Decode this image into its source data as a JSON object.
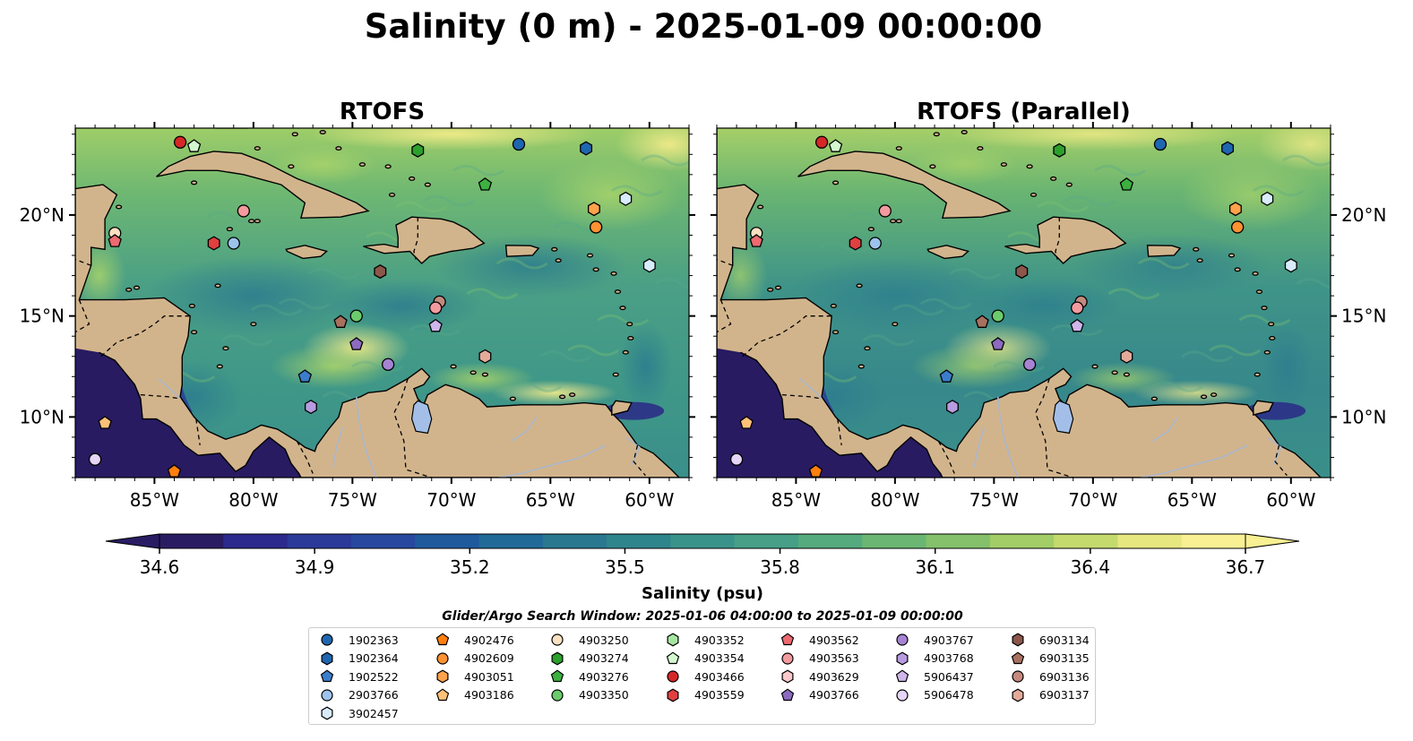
{
  "figure": {
    "title": "Salinity (0 m) - 2025-01-09 00:00:00",
    "panels": [
      {
        "title": "RTOFS",
        "variant": "control"
      },
      {
        "title": "RTOFS (Parallel)",
        "variant": "parallel"
      }
    ],
    "x_ticks": [
      "85°W",
      "80°W",
      "75°W",
      "70°W",
      "65°W",
      "60°W"
    ],
    "y_ticks": [
      "20°N",
      "15°N",
      "10°N"
    ],
    "extent": {
      "lon": [
        -89,
        -58
      ],
      "lat": [
        7,
        24.3
      ]
    }
  },
  "colorbar": {
    "label": "Salinity (psu)",
    "ticks": [
      "34.6",
      "34.9",
      "35.2",
      "35.5",
      "35.8",
      "36.1",
      "36.4",
      "36.7"
    ],
    "range": [
      34.6,
      36.7
    ],
    "colors": [
      "#2a1c63",
      "#2c2a8c",
      "#2b3a99",
      "#27489e",
      "#1f5a9d",
      "#216a98",
      "#2a7890",
      "#2f858c",
      "#3a938a",
      "#469f86",
      "#55aa7e",
      "#6bb673",
      "#84c16a",
      "#a2cd67",
      "#c5da6c",
      "#e6e77f",
      "#f9ef93"
    ],
    "extend": "both"
  },
  "search_window": "Glider/Argo Search Window: 2025-01-06 04:00:00 to 2025-01-09 00:00:00",
  "colors": {
    "land": "#d2b48c",
    "lake": "#a3bfe8",
    "river": "#aab7cc",
    "deep_low": "#281b62"
  },
  "legend": [
    {
      "id": "1902363",
      "marker": "circle",
      "color": "#1f66b0"
    },
    {
      "id": "1902364",
      "marker": "hexagon",
      "color": "#1f66b0"
    },
    {
      "id": "1902522",
      "marker": "pentagon",
      "color": "#3a7dcc"
    },
    {
      "id": "2903766",
      "marker": "circle",
      "color": "#9cc3ec"
    },
    {
      "id": "3902457",
      "marker": "hexagon",
      "color": "#d9ecfb"
    },
    {
      "id": "4902476",
      "marker": "pentagon",
      "color": "#ff7f0e"
    },
    {
      "id": "4902609",
      "marker": "circle",
      "color": "#ff9232"
    },
    {
      "id": "4903051",
      "marker": "hexagon",
      "color": "#ffa24b"
    },
    {
      "id": "4903186",
      "marker": "pentagon",
      "color": "#ffc178"
    },
    {
      "id": "4903250",
      "marker": "circle",
      "color": "#fde0c2"
    },
    {
      "id": "4903274",
      "marker": "hexagon",
      "color": "#2ca02c"
    },
    {
      "id": "4903276",
      "marker": "pentagon",
      "color": "#3cb040"
    },
    {
      "id": "4903350",
      "marker": "circle",
      "color": "#6bcc6b"
    },
    {
      "id": "4903352",
      "marker": "hexagon",
      "color": "#a6e5a0"
    },
    {
      "id": "4903354",
      "marker": "pentagon",
      "color": "#d3f8cf"
    },
    {
      "id": "4903466",
      "marker": "circle",
      "color": "#d62728"
    },
    {
      "id": "4903559",
      "marker": "hexagon",
      "color": "#e0403f"
    },
    {
      "id": "4903562",
      "marker": "pentagon",
      "color": "#ec6a70"
    },
    {
      "id": "4903563",
      "marker": "circle",
      "color": "#f39a9e"
    },
    {
      "id": "4903629",
      "marker": "hexagon",
      "color": "#fbc8cb"
    },
    {
      "id": "4903766",
      "marker": "pentagon",
      "color": "#8c6bc0"
    },
    {
      "id": "4903767",
      "marker": "circle",
      "color": "#a683d3"
    },
    {
      "id": "4903768",
      "marker": "hexagon",
      "color": "#b99be0"
    },
    {
      "id": "5906437",
      "marker": "pentagon",
      "color": "#cfb6ec"
    },
    {
      "id": "5906478",
      "marker": "circle",
      "color": "#e5d6f8"
    },
    {
      "id": "6903134",
      "marker": "hexagon",
      "color": "#8c564b"
    },
    {
      "id": "6903135",
      "marker": "pentagon",
      "color": "#a8705f"
    },
    {
      "id": "6903136",
      "marker": "circle",
      "color": "#c48a7e"
    },
    {
      "id": "6903137",
      "marker": "hexagon",
      "color": "#e3aa9a"
    }
  ],
  "floats": [
    {
      "id": "4903466",
      "lon": -83.7,
      "lat": 23.6
    },
    {
      "id": "4903354",
      "lon": -83.0,
      "lat": 23.4
    },
    {
      "id": "4903274",
      "lon": -71.7,
      "lat": 23.2
    },
    {
      "id": "1902363",
      "lon": -66.6,
      "lat": 23.5
    },
    {
      "id": "1902364",
      "lon": -63.2,
      "lat": 23.3
    },
    {
      "id": "4903276",
      "lon": -68.3,
      "lat": 21.5
    },
    {
      "id": "3902457",
      "lon": -61.2,
      "lat": 20.8
    },
    {
      "id": "4903051",
      "lon": -62.8,
      "lat": 20.3
    },
    {
      "id": "4902609",
      "lon": -62.7,
      "lat": 19.4
    },
    {
      "id": "4903563",
      "lon": -80.5,
      "lat": 20.2
    },
    {
      "id": "4903250",
      "lon": -87.0,
      "lat": 19.1
    },
    {
      "id": "4903562",
      "lon": -87.0,
      "lat": 18.7
    },
    {
      "id": "4903559",
      "lon": -82.0,
      "lat": 18.6
    },
    {
      "id": "2903766",
      "lon": -81.0,
      "lat": 18.6
    },
    {
      "id": "6903134",
      "lon": -73.6,
      "lat": 17.2
    },
    {
      "id": "3902457",
      "lon": -60.0,
      "lat": 17.5
    },
    {
      "id": "6903136",
      "lon": -70.6,
      "lat": 15.7
    },
    {
      "id": "4903563",
      "lon": -70.8,
      "lat": 15.4
    },
    {
      "id": "4903350",
      "lon": -74.8,
      "lat": 15.0
    },
    {
      "id": "6903135",
      "lon": -75.6,
      "lat": 14.7
    },
    {
      "id": "5906437",
      "lon": -70.8,
      "lat": 14.5
    },
    {
      "id": "4903766",
      "lon": -74.8,
      "lat": 13.6
    },
    {
      "id": "4903767",
      "lon": -73.2,
      "lat": 12.6
    },
    {
      "id": "6903137",
      "lon": -68.3,
      "lat": 13.0
    },
    {
      "id": "1902522",
      "lon": -77.4,
      "lat": 12.0
    },
    {
      "id": "4903768",
      "lon": -77.1,
      "lat": 10.5
    },
    {
      "id": "4903186",
      "lon": -87.5,
      "lat": 9.7
    },
    {
      "id": "5906478",
      "lon": -88.0,
      "lat": 7.9
    },
    {
      "id": "4902476",
      "lon": -84.0,
      "lat": 7.3
    }
  ]
}
